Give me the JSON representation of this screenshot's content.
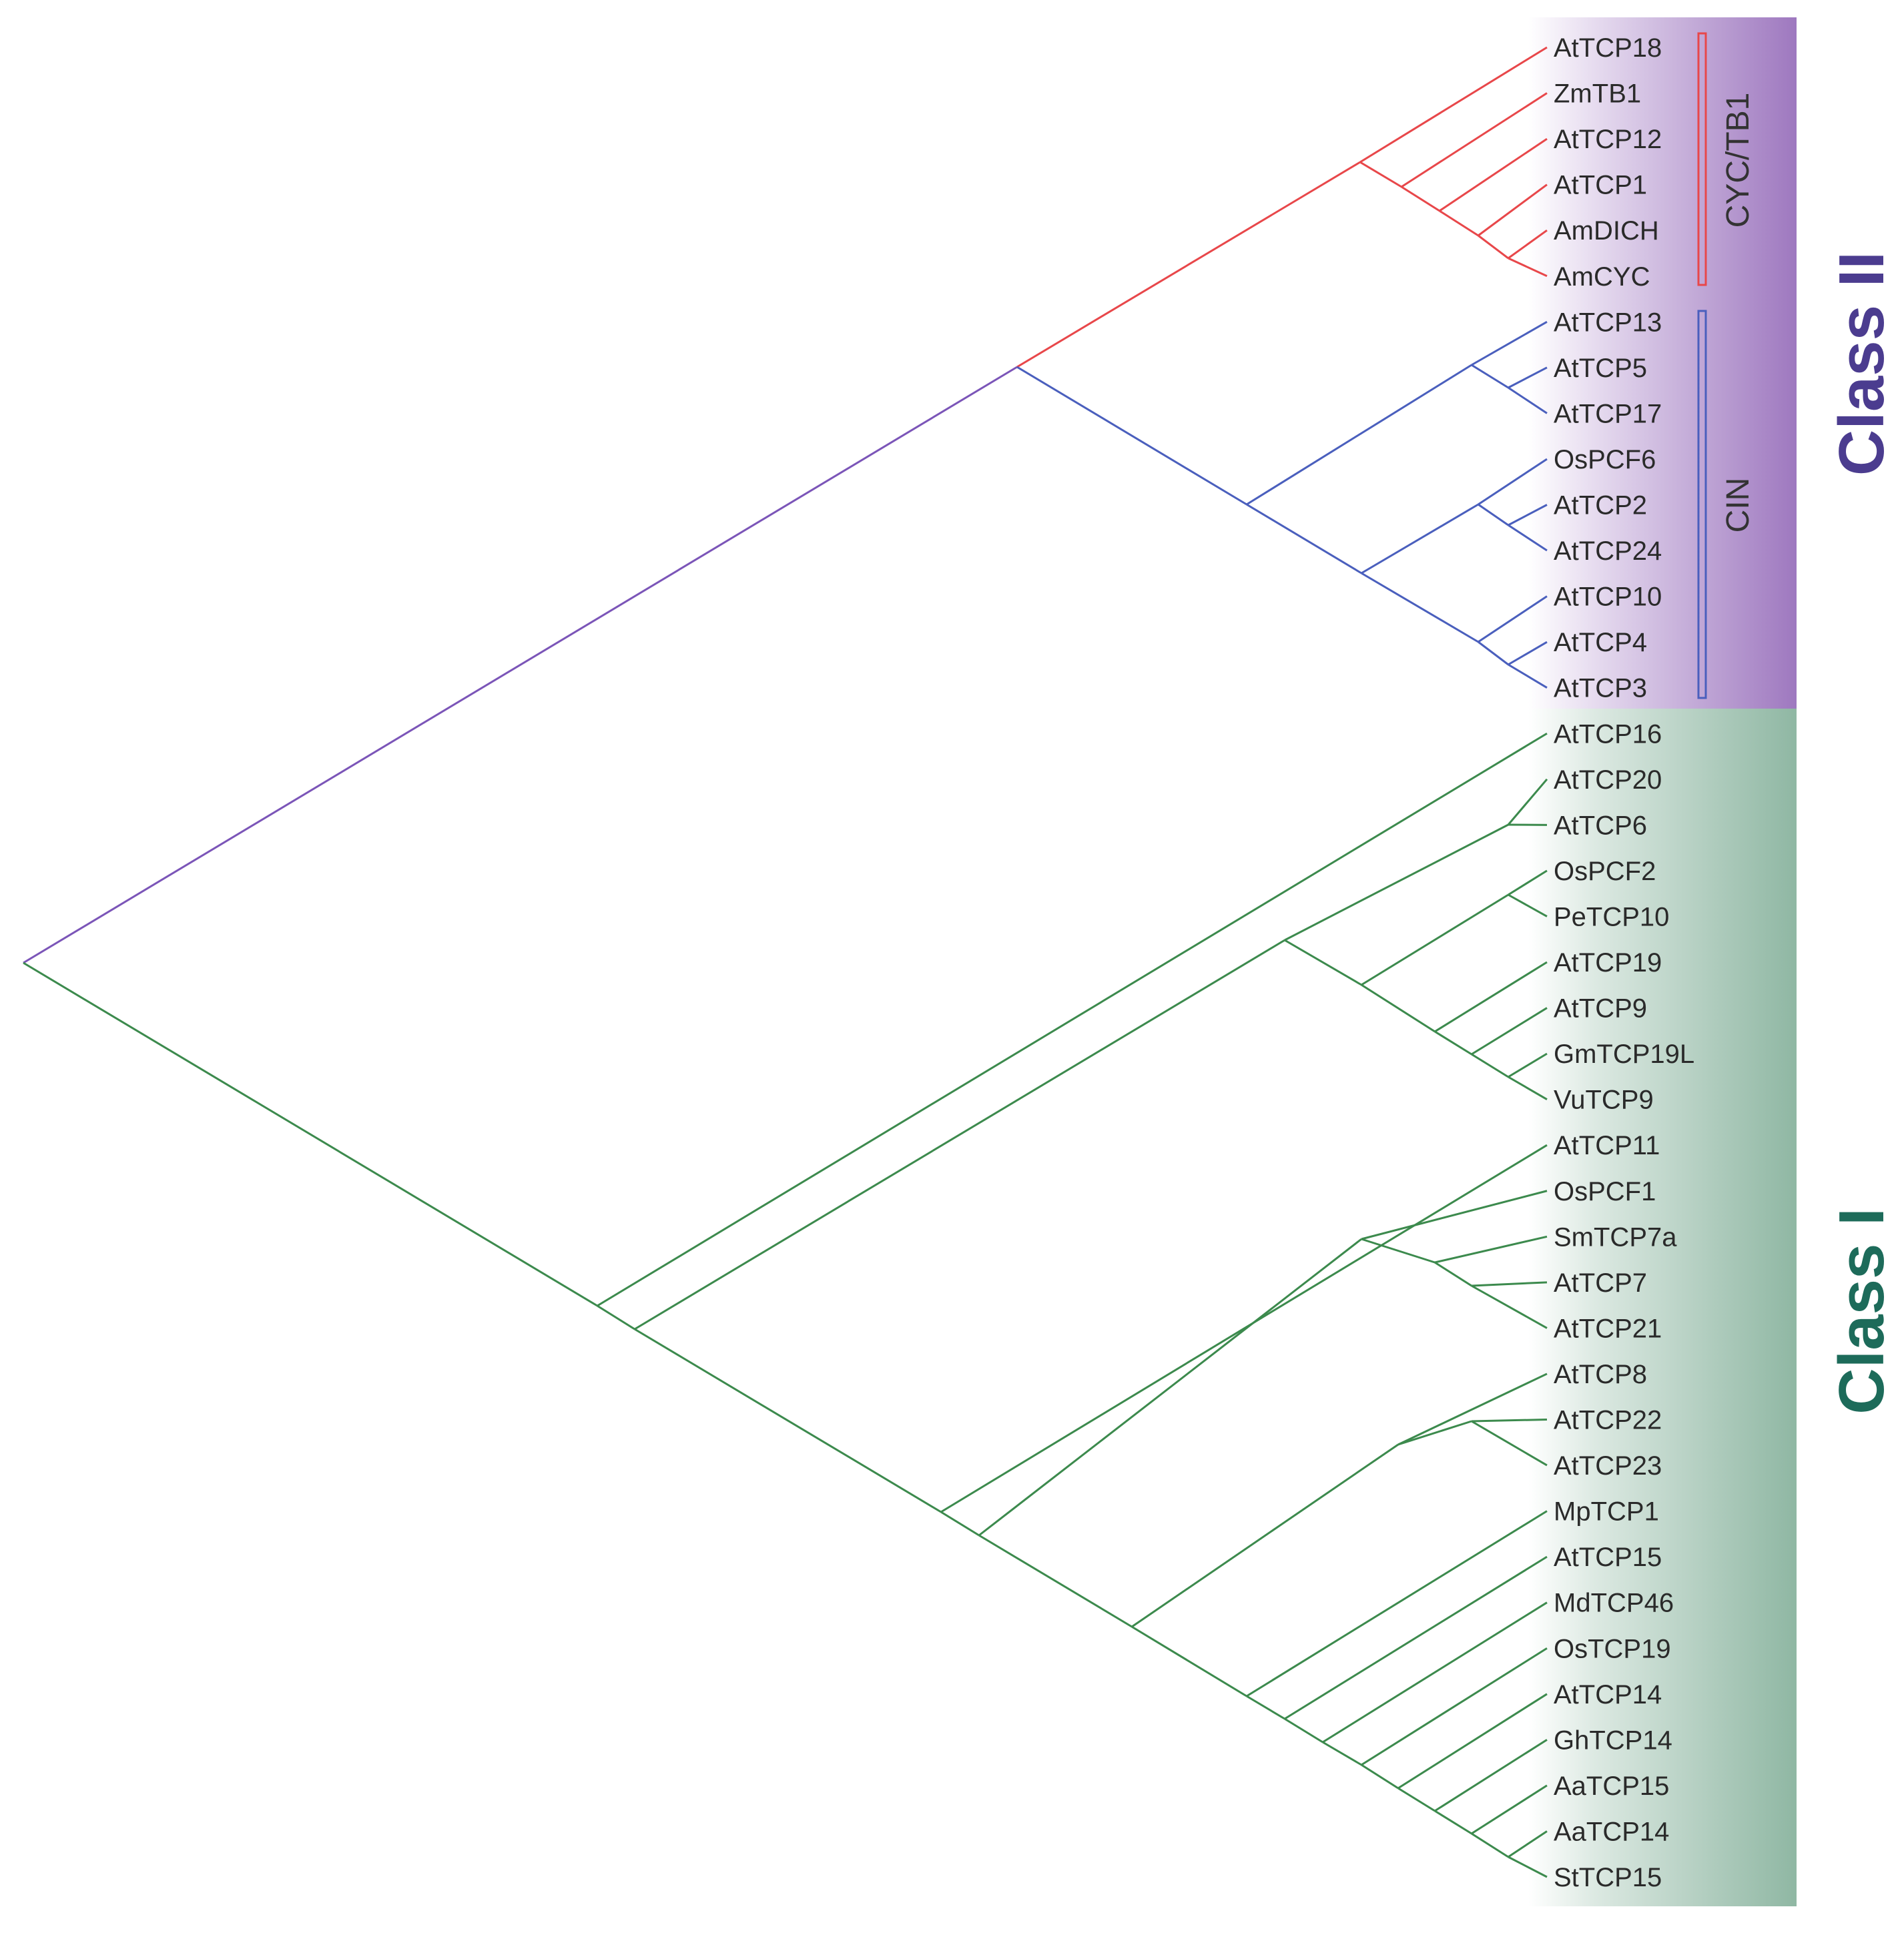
{
  "colors": {
    "class_ii": "#4b3c8f",
    "class_i": "#1d6b5a",
    "root_branch": "#7b55b8",
    "class_ii_band": "#9e78bf",
    "class_i_band": "#8fb7a3",
    "cyc_tb1_clade": "#e8474a",
    "cin_clade": "#4a5fbd",
    "class_i_clade": "#3c8a4d"
  },
  "class_labels": {
    "class_ii": "Class II",
    "class_i": "Class I"
  },
  "subclades": {
    "cyc_tb1": "CYC/TB1",
    "cin": "CIN"
  },
  "leaves": [
    "AtTCP18",
    "ZmTB1",
    "AtTCP12",
    "AtTCP1",
    "AmDICH",
    "AmCYC",
    "AtTCP13",
    "AtTCP5",
    "AtTCP17",
    "OsPCF6",
    "AtTCP2",
    "AtTCP24",
    "AtTCP10",
    "AtTCP4",
    "AtTCP3",
    "AtTCP16",
    "AtTCP20",
    "AtTCP6",
    "OsPCF2",
    "PeTCP10",
    "AtTCP19",
    "AtTCP9",
    "GmTCP19L",
    "VuTCP9",
    "AtTCP11",
    "OsPCF1",
    "SmTCP7a",
    "AtTCP7",
    "AtTCP21",
    "AtTCP8",
    "AtTCP22",
    "AtTCP23",
    "MpTCP1",
    "AtTCP15",
    "MdTCP46",
    "OsTCP19",
    "AtTCP14",
    "GhTCP14",
    "AaTCP15",
    "AaTCP14",
    "StTCP15"
  ]
}
